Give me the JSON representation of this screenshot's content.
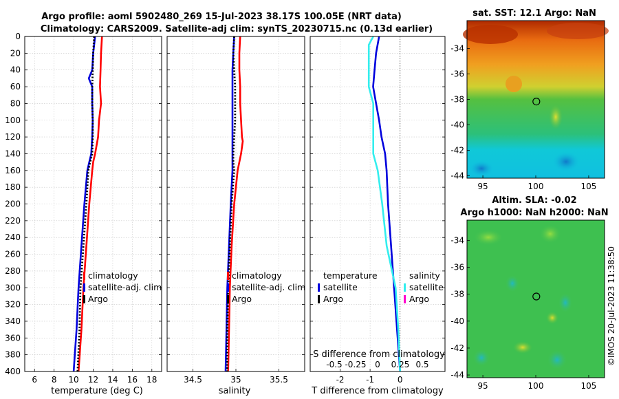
{
  "chart_data": {
    "type": "line",
    "title_line1": "Argo profile: aoml 5902480_269 15-Jul-2023 38.17S 100.05E (NRT data)",
    "title_line2": "Climatology: CARS2009. Satellite-adj clim: synTS_20230715.nc (0.13d earlier)",
    "depth_ticks": [
      "0",
      "20",
      "40",
      "60",
      "80",
      "100",
      "120",
      "140",
      "160",
      "180",
      "200",
      "220",
      "240",
      "260",
      "280",
      "300",
      "320",
      "340",
      "360",
      "380",
      "400"
    ],
    "depth_range": [
      0,
      400
    ],
    "colors": {
      "climatology": "#ff0000",
      "satellite": "#0000dd",
      "argo": "#000000",
      "sat_salinity": "#33eeee",
      "argo_salinity": "#ff00cc"
    },
    "panels": [
      {
        "id": "temperature",
        "xlabel": "temperature (deg C)",
        "xlim": [
          5,
          19
        ],
        "xticks": [
          "6",
          "8",
          "10",
          "12",
          "14",
          "16",
          "18"
        ],
        "legend": [
          "climatology",
          "satellite-adj. clim",
          "Argo"
        ],
        "series": [
          {
            "name": "climatology",
            "color": "#ff0000",
            "style": "solid",
            "depth": [
              0,
              10,
              20,
              40,
              60,
              80,
              100,
              120,
              140,
              150,
              160,
              200,
              250,
              300,
              350,
              400
            ],
            "values": [
              12.9,
              12.85,
              12.8,
              12.75,
              12.7,
              12.8,
              12.6,
              12.5,
              12.2,
              12.0,
              11.9,
              11.6,
              11.3,
              11.0,
              10.8,
              10.5
            ]
          },
          {
            "name": "satellite-adj. clim",
            "color": "#0000dd",
            "style": "solid",
            "depth": [
              0,
              10,
              20,
              40,
              50,
              60,
              80,
              100,
              120,
              140,
              150,
              160,
              200,
              250,
              300,
              350,
              400
            ],
            "values": [
              12.2,
              12.1,
              12.0,
              11.9,
              11.55,
              11.9,
              11.9,
              11.95,
              11.9,
              11.8,
              11.6,
              11.4,
              11.1,
              10.8,
              10.5,
              10.3,
              10.0
            ]
          },
          {
            "name": "Argo",
            "color": "#000000",
            "style": "dotted",
            "depth": [
              0,
              20,
              40,
              60,
              80,
              100,
              120,
              140,
              150,
              160,
              200,
              250,
              300,
              350,
              400
            ],
            "values": [
              12.1,
              12.0,
              11.95,
              11.9,
              11.9,
              11.95,
              11.95,
              11.9,
              11.7,
              11.5,
              11.3,
              11.0,
              10.7,
              10.6,
              10.4
            ]
          }
        ]
      },
      {
        "id": "salinity",
        "xlabel": "salinity",
        "xlim": [
          34.2,
          35.8
        ],
        "xticks": [
          "34.5",
          "35",
          "35.5"
        ],
        "legend": [
          "climatology",
          "satellite-adj. clim",
          "Argo"
        ],
        "series": [
          {
            "name": "climatology",
            "color": "#ff0000",
            "style": "solid",
            "depth": [
              0,
              20,
              40,
              60,
              80,
              100,
              120,
              125,
              140,
              160,
              200,
              250,
              300,
              350,
              400
            ],
            "values": [
              35.05,
              35.04,
              35.04,
              35.05,
              35.05,
              35.06,
              35.07,
              35.08,
              35.06,
              35.02,
              34.98,
              34.95,
              34.93,
              34.92,
              34.91
            ]
          },
          {
            "name": "satellite-adj. clim",
            "color": "#0000dd",
            "style": "solid",
            "depth": [
              0,
              20,
              40,
              60,
              80,
              100,
              120,
              140,
              160,
              200,
              250,
              300,
              350,
              400
            ],
            "values": [
              34.98,
              34.97,
              34.96,
              34.96,
              34.96,
              34.96,
              34.96,
              34.96,
              34.96,
              34.94,
              34.92,
              34.9,
              34.89,
              34.88
            ]
          },
          {
            "name": "Argo",
            "color": "#000000",
            "style": "dotted",
            "depth": [
              0,
              20,
              40,
              60,
              80,
              100,
              120,
              140,
              150,
              160,
              200,
              250,
              300,
              350,
              400
            ],
            "values": [
              34.98,
              34.97,
              34.98,
              34.99,
              34.99,
              34.99,
              34.98,
              34.97,
              34.97,
              34.98,
              34.95,
              34.93,
              34.91,
              34.9,
              34.9
            ]
          }
        ]
      },
      {
        "id": "difference",
        "xlabel": "T difference from climatology",
        "xlabel_top": "S difference from climatology",
        "xlim": [
          -3,
          1.5
        ],
        "xticks": [
          "-2",
          "-1",
          "0"
        ],
        "xticks_s": [
          "-0.5",
          "-0.25",
          "0",
          "0.25",
          "0.5"
        ],
        "legend_t_title": "temperature",
        "legend_s_title": "salinity",
        "legend_t": [
          "satellite",
          "Argo"
        ],
        "legend_s": [
          "satellite",
          "Argo"
        ],
        "series": [
          {
            "name": "T satellite",
            "color": "#0000dd",
            "style": "solid",
            "depth": [
              0,
              10,
              20,
              40,
              60,
              80,
              100,
              120,
              140,
              160,
              200,
              250,
              300,
              350,
              400
            ],
            "values": [
              -0.7,
              -0.75,
              -0.8,
              -0.85,
              -0.9,
              -0.8,
              -0.7,
              -0.62,
              -0.5,
              -0.45,
              -0.4,
              -0.3,
              -0.2,
              -0.1,
              0.0
            ]
          },
          {
            "name": "S satellite",
            "color": "#33eeee",
            "style": "solid",
            "depth": [
              0,
              10,
              20,
              60,
              80,
              100,
              140,
              160,
              200,
              250,
              300,
              350,
              400
            ],
            "values": [
              -0.3,
              -0.35,
              -0.35,
              -0.35,
              -0.3,
              -0.3,
              -0.3,
              -0.25,
              -0.2,
              -0.15,
              -0.05,
              -0.02,
              0.0
            ]
          }
        ]
      }
    ],
    "maps": [
      {
        "id": "sst-map",
        "title": "sat. SST: 12.1 Argo: NaN",
        "lat_ticks": [
          "-34",
          "-36",
          "-38",
          "-40",
          "-42",
          "-44"
        ],
        "lon_ticks": [
          "95",
          "100",
          "105"
        ],
        "lon_range": [
          93.5,
          106.5
        ],
        "lat_range": [
          -44.2,
          -31.8
        ],
        "marker": [
          100.05,
          -38.17
        ]
      },
      {
        "id": "sla-map",
        "title": "Altim. SLA: -0.02",
        "title2": "Argo h1000: NaN h2000: NaN",
        "lat_ticks": [
          "-34",
          "-36",
          "-38",
          "-40",
          "-42",
          "-44"
        ],
        "lon_ticks": [
          "95",
          "100",
          "105"
        ],
        "lon_range": [
          93.5,
          106.5
        ],
        "lat_range": [
          -44.2,
          -32.5
        ],
        "marker": [
          100.05,
          -38.17
        ]
      }
    ],
    "footer": "©IMOS 20-Jul-2023 11:38:50"
  }
}
